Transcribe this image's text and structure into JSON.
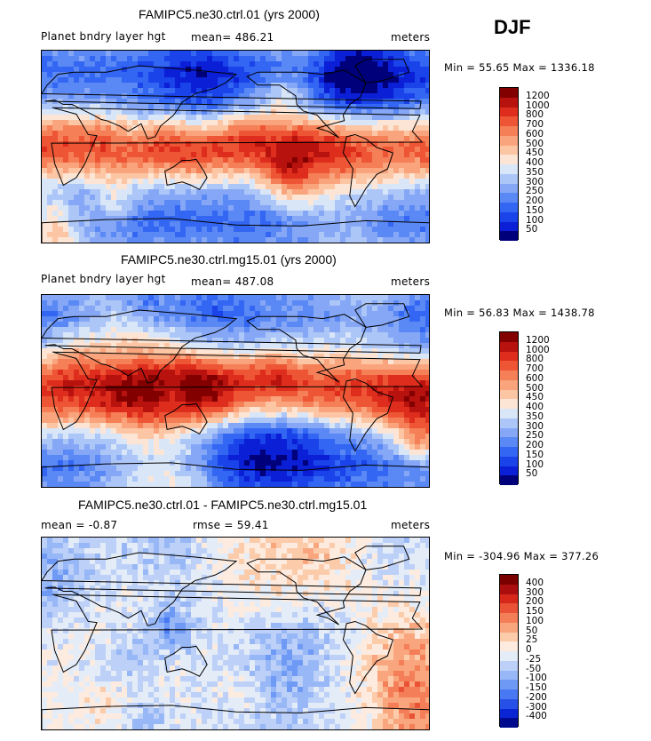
{
  "season": "DJF",
  "colors": {
    "abs_scale": [
      "#00007a",
      "#0a1fd6",
      "#1a43ea",
      "#3366f2",
      "#5a88f5",
      "#85a7f6",
      "#adc6f8",
      "#d9e6f8",
      "#fde5d6",
      "#fcc6a5",
      "#f9a47c",
      "#f57f57",
      "#ee5535",
      "#de2d1c",
      "#b8120f",
      "#820000"
    ],
    "diff_scale": [
      "#000a8c",
      "#0a25d4",
      "#2650e8",
      "#4878f2",
      "#6e99f5",
      "#97b7f7",
      "#bcd0f8",
      "#e4ecf8",
      "#fdebdf",
      "#fccbaa",
      "#f9a67e",
      "#f47e58",
      "#ea5235",
      "#d5281b",
      "#aa0e0e",
      "#7a0000"
    ]
  },
  "panels": [
    {
      "title": "FAMIPC5.ne30.ctrl.01 (yrs 2000)",
      "variable": "Planet bndry layer hgt",
      "stat1": "mean= 486.21",
      "stat2": "",
      "units": "meters",
      "minmax": "Min =  55.65  Max = 1336.18",
      "levels": [
        "1200",
        "1000",
        "800",
        "700",
        "600",
        "500",
        "450",
        "400",
        "350",
        "300",
        "250",
        "200",
        "150",
        "100",
        "50"
      ]
    },
    {
      "title": "FAMIPC5.ne30.ctrl.mg15.01 (yrs 2000)",
      "variable": "Planet bndry layer hgt",
      "stat1": "mean= 487.08",
      "stat2": "",
      "units": "meters",
      "minmax": "Min =  56.83  Max = 1438.78",
      "levels": [
        "1200",
        "1000",
        "800",
        "700",
        "600",
        "500",
        "450",
        "400",
        "350",
        "300",
        "250",
        "200",
        "150",
        "100",
        "50"
      ]
    },
    {
      "title": "FAMIPC5.ne30.ctrl.01 - FAMIPC5.ne30.ctrl.mg15.01",
      "variable": "mean =  -0.87",
      "stat1": "rmse =  59.41",
      "stat2": "",
      "units": "meters",
      "minmax": "Min = -304.96  Max = 377.26",
      "levels": [
        "400",
        "300",
        "200",
        "150",
        "100",
        "50",
        "25",
        "0",
        "-25",
        "-50",
        "-100",
        "-150",
        "-200",
        "-300",
        "-400"
      ]
    }
  ]
}
